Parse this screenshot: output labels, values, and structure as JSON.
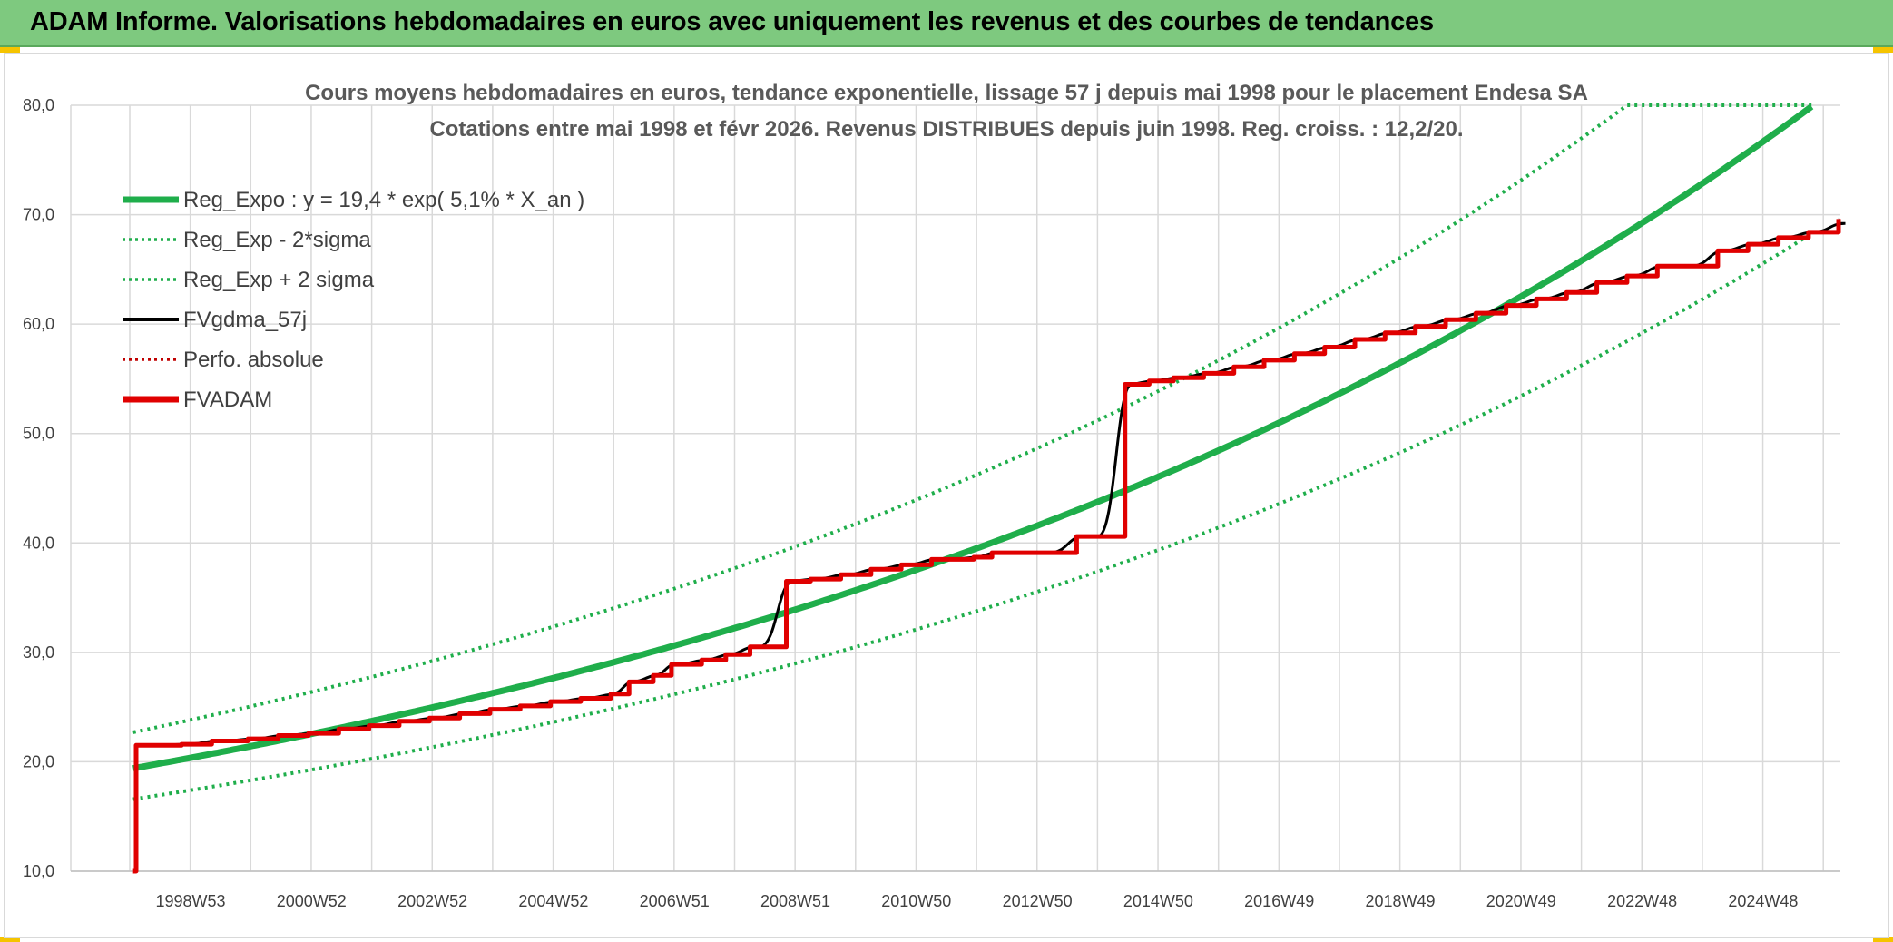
{
  "header": {
    "title": "ADAM Informe. Valorisations hebdomadaires en euros avec uniquement les revenus et des courbes de tendances"
  },
  "colors": {
    "header_bg": "#7ec97f",
    "reg": "#1fae4b",
    "fvgdma": "#000000",
    "perfo": "#c00000",
    "fvadam": "#e00000"
  },
  "chart_data": {
    "type": "line",
    "title": [
      "Cours moyens hebdomadaires en euros, tendance exponentielle, lissage 57 j depuis mai 1998 pour le placement Endesa SA",
      "Cotations entre mai 1998 et févr 2026. Revenus DISTRIBUES depuis juin 1998. Reg. croiss. : 12,2/20."
    ],
    "y_ticks": [
      "10,0",
      "20,0",
      "30,0",
      "40,0",
      "50,0",
      "60,0",
      "70,0",
      "80,0"
    ],
    "ylim": [
      10,
      80
    ],
    "x_tick_labels": [
      "1998W53",
      "2000W52",
      "2002W52",
      "2004W52",
      "2006W51",
      "2008W51",
      "2010W50",
      "2012W50",
      "2014W50",
      "2016W49",
      "2018W49",
      "2020W49",
      "2022W48",
      "2024W48"
    ],
    "xlim": [
      1998.0,
      2026.2
    ],
    "legend": [
      {
        "name": "Reg_Expo : y = 19,4 * exp( 5,1% *  X_an )",
        "style": "solid-thick",
        "color": "#1fae4b"
      },
      {
        "name": "Reg_Exp - 2*sigma",
        "style": "dotted",
        "color": "#1fae4b"
      },
      {
        "name": "Reg_Exp + 2 sigma",
        "style": "dotted",
        "color": "#1fae4b"
      },
      {
        "name": "FVgdma_57j",
        "style": "solid",
        "color": "#000000"
      },
      {
        "name": "Perfo. absolue",
        "style": "dotted",
        "color": "#c00000"
      },
      {
        "name": "FVADAM",
        "style": "solid-thick",
        "color": "#e00000"
      }
    ],
    "regression": {
      "a": 19.4,
      "growth": 0.051,
      "start": 1998.4,
      "sigma_factor": 1.17
    },
    "fvadam_steps": [
      {
        "x": 1998.4,
        "y": 10.0
      },
      {
        "x": 1998.45,
        "y": 21.5
      },
      {
        "x": 1999.2,
        "y": 21.6
      },
      {
        "x": 1999.7,
        "y": 21.9
      },
      {
        "x": 2000.3,
        "y": 22.1
      },
      {
        "x": 2000.8,
        "y": 22.4
      },
      {
        "x": 2001.3,
        "y": 22.6
      },
      {
        "x": 2001.8,
        "y": 23.0
      },
      {
        "x": 2002.3,
        "y": 23.3
      },
      {
        "x": 2002.8,
        "y": 23.7
      },
      {
        "x": 2003.3,
        "y": 24.0
      },
      {
        "x": 2003.8,
        "y": 24.4
      },
      {
        "x": 2004.3,
        "y": 24.8
      },
      {
        "x": 2004.8,
        "y": 25.1
      },
      {
        "x": 2005.3,
        "y": 25.5
      },
      {
        "x": 2005.8,
        "y": 25.8
      },
      {
        "x": 2006.3,
        "y": 26.2
      },
      {
        "x": 2006.6,
        "y": 27.3
      },
      {
        "x": 2007.0,
        "y": 27.9
      },
      {
        "x": 2007.3,
        "y": 28.9
      },
      {
        "x": 2007.8,
        "y": 29.3
      },
      {
        "x": 2008.2,
        "y": 29.8
      },
      {
        "x": 2008.6,
        "y": 30.5
      },
      {
        "x": 2009.2,
        "y": 36.5
      },
      {
        "x": 2009.6,
        "y": 36.7
      },
      {
        "x": 2010.1,
        "y": 37.1
      },
      {
        "x": 2010.6,
        "y": 37.6
      },
      {
        "x": 2011.1,
        "y": 38.0
      },
      {
        "x": 2011.6,
        "y": 38.5
      },
      {
        "x": 2012.3,
        "y": 38.7
      },
      {
        "x": 2012.6,
        "y": 39.1
      },
      {
        "x": 2014.0,
        "y": 40.6
      },
      {
        "x": 2014.8,
        "y": 54.5
      },
      {
        "x": 2015.2,
        "y": 54.8
      },
      {
        "x": 2015.6,
        "y": 55.1
      },
      {
        "x": 2016.1,
        "y": 55.5
      },
      {
        "x": 2016.6,
        "y": 56.1
      },
      {
        "x": 2017.1,
        "y": 56.7
      },
      {
        "x": 2017.6,
        "y": 57.3
      },
      {
        "x": 2018.1,
        "y": 57.9
      },
      {
        "x": 2018.6,
        "y": 58.6
      },
      {
        "x": 2019.1,
        "y": 59.2
      },
      {
        "x": 2019.6,
        "y": 59.8
      },
      {
        "x": 2020.1,
        "y": 60.4
      },
      {
        "x": 2020.6,
        "y": 61.0
      },
      {
        "x": 2021.1,
        "y": 61.7
      },
      {
        "x": 2021.6,
        "y": 62.3
      },
      {
        "x": 2022.1,
        "y": 62.9
      },
      {
        "x": 2022.6,
        "y": 63.8
      },
      {
        "x": 2023.1,
        "y": 64.4
      },
      {
        "x": 2023.6,
        "y": 65.3
      },
      {
        "x": 2024.6,
        "y": 66.7
      },
      {
        "x": 2025.1,
        "y": 67.3
      },
      {
        "x": 2025.6,
        "y": 67.9
      },
      {
        "x": 2026.1,
        "y": 68.4
      },
      {
        "x": 2026.6,
        "y": 69.2
      },
      {
        "x": 2027.0,
        "y": 69.6
      }
    ],
    "grid": true,
    "legend_position": "top-left"
  }
}
